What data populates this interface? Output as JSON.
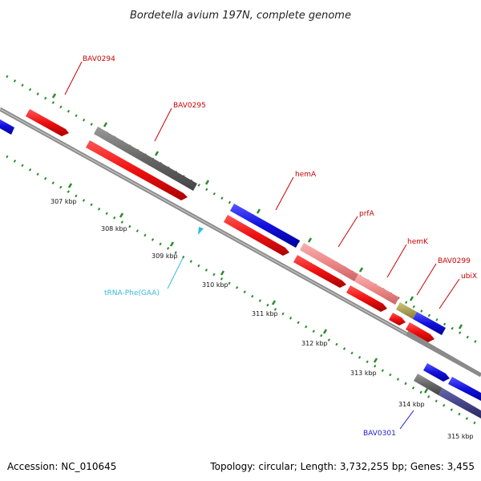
{
  "title": "Bordetella avium 197N, complete genome",
  "footer": {
    "accession": "Accession: NC_010645",
    "summary": "Topology: circular; Length: 3,732,255 bp; Genes: 3,455"
  },
  "kbp_ticks": [
    "307 kbp",
    "308 kbp",
    "309 kbp",
    "310 kbp",
    "311 kbp",
    "312 kbp",
    "313 kbp",
    "314 kbp",
    "315 kbp"
  ],
  "gene_labels": [
    {
      "id": "BAV0294",
      "text": "BAV0294",
      "color": "#cc0000"
    },
    {
      "id": "BAV0295",
      "text": "BAV0295",
      "color": "#cc0000"
    },
    {
      "id": "hemA",
      "text": "hemA",
      "color": "#cc0000"
    },
    {
      "id": "prfA",
      "text": "prfA",
      "color": "#cc0000"
    },
    {
      "id": "hemK",
      "text": "hemK",
      "color": "#cc0000"
    },
    {
      "id": "BAV0299",
      "text": "BAV0299",
      "color": "#cc0000"
    },
    {
      "id": "ubiX",
      "text": "ubiX",
      "color": "#cc0000"
    },
    {
      "id": "BAV0301",
      "text": "BAV0301",
      "color": "#1a1acc"
    },
    {
      "id": "trna",
      "text": "tRNA-Phe(GAA)",
      "color": "#33bbdd"
    }
  ],
  "colors": {
    "red_feature": "#ee1111",
    "blue_feature": "#1111dd",
    "gray_feature": "#666666",
    "pink_feature": "#ee8888",
    "olive_feature": "#aaa055",
    "navy_feature": "#444488",
    "backbone": "#8a8a8a",
    "dotted_track": "#2a8a2a",
    "trna": "#33bbdd"
  }
}
